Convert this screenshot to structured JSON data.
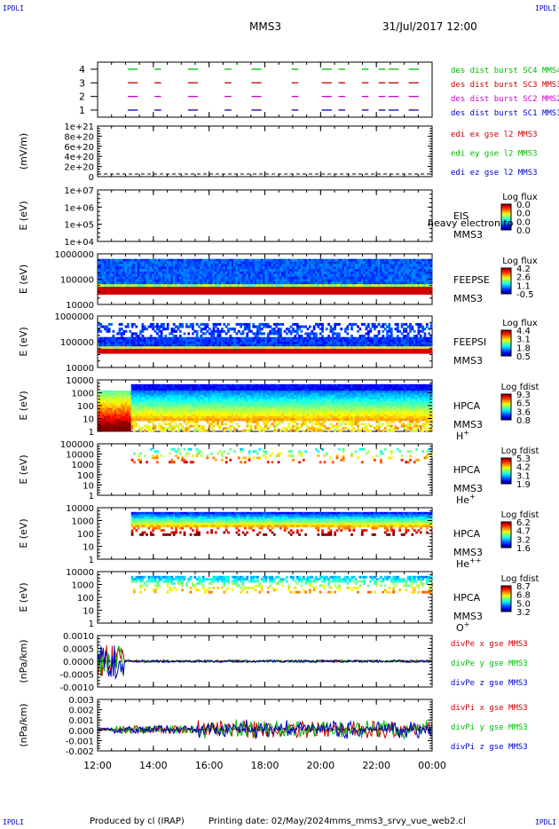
{
  "header": {
    "corner_label": "IPDLI",
    "title": "MMS3",
    "datetime": "31/Jul/2017 12:00"
  },
  "footer": {
    "produced_by": "Produced by cl (IRAP)",
    "printing_date": "Printing date: 02/May/2024",
    "filename": "mms_mms3_srvy_vue_web2.cl"
  },
  "colors": {
    "blue": "#0000cc",
    "magenta": "#cc00cc",
    "red": "#cc0000",
    "green": "#00bb00"
  },
  "chart_data": [
    {
      "type": "line",
      "title": "",
      "ylabel": "",
      "ylim": [
        0.5,
        4.5
      ],
      "yticks": [
        "1",
        "2",
        "3",
        "4"
      ],
      "series": [
        {
          "name": "des dist burst SC1 MMS1",
          "color": "#0000cc",
          "level": 1
        },
        {
          "name": "des dist burst SC2 MMS2",
          "color": "#cc00cc",
          "level": 2
        },
        {
          "name": "des dist burst SC3 MMS3",
          "color": "#cc0000",
          "level": 3
        },
        {
          "name": "des dist burst SC4 MMS4",
          "color": "#00bb00",
          "level": 4
        }
      ]
    },
    {
      "type": "line",
      "ylabel": "(mV/m)",
      "ylim": [
        0,
        1e+21
      ],
      "yticks": [
        "0",
        "2e+20",
        "4e+20",
        "6e+20",
        "8e+20",
        "1e+21"
      ],
      "series": [
        {
          "name": "edi ex gse l2 MMS3",
          "color": "#cc0000"
        },
        {
          "name": "edi ey gse l2 MMS3",
          "color": "#00bb00"
        },
        {
          "name": "edi ez gse l2 MMS3",
          "color": "#0000cc"
        }
      ]
    },
    {
      "type": "heatmap",
      "ylabel": "E (eV)",
      "yticks": [
        "1e+04",
        "1e+05",
        "1e+06",
        "1e+07"
      ],
      "instrument": "EIS",
      "spacecraft": "MMS3",
      "overlay_text": "heavy electron to",
      "colorbar_title": "Log flux",
      "colorbar_ticks": [
        "0.0",
        "0.0",
        "0.0",
        "0.0"
      ]
    },
    {
      "type": "heatmap",
      "ylabel": "E (eV)",
      "yticks": [
        "10000",
        "100000",
        "1000000"
      ],
      "instrument": "FEEPSE",
      "spacecraft": "MMS3",
      "colorbar_title": "Log flux",
      "colorbar_ticks": [
        "4.2",
        "2.6",
        "1.1",
        "-0.5"
      ]
    },
    {
      "type": "heatmap",
      "ylabel": "E (eV)",
      "yticks": [
        "10000",
        "100000",
        "1000000"
      ],
      "instrument": "FEEPSI",
      "spacecraft": "MMS3",
      "colorbar_title": "Log flux",
      "colorbar_ticks": [
        "4.4",
        "3.1",
        "1.8",
        "0.5"
      ]
    },
    {
      "type": "heatmap",
      "ylabel": "E (eV)",
      "yticks": [
        "1",
        "10",
        "100",
        "1000",
        "10000"
      ],
      "instrument": "HPCA",
      "spacecraft": "MMS3",
      "species": "H",
      "species_sup": "+",
      "colorbar_title": "Log fdist",
      "colorbar_ticks": [
        "9.3",
        "6.5",
        "3.6",
        "0.8"
      ]
    },
    {
      "type": "heatmap",
      "ylabel": "E (eV)",
      "yticks": [
        "1",
        "10",
        "100",
        "1000",
        "10000",
        "100000"
      ],
      "instrument": "HPCA",
      "spacecraft": "MMS3",
      "species": "He",
      "species_sup": "+",
      "colorbar_title": "Log fdist",
      "colorbar_ticks": [
        "5.3",
        "4.2",
        "3.1",
        "1.9"
      ]
    },
    {
      "type": "heatmap",
      "ylabel": "E (eV)",
      "yticks": [
        "1",
        "10",
        "100",
        "1000",
        "10000"
      ],
      "instrument": "HPCA",
      "spacecraft": "MMS3",
      "species": "He",
      "species_sup": "++",
      "colorbar_title": "Log fdist",
      "colorbar_ticks": [
        "6.2",
        "4.7",
        "3.2",
        "1.6"
      ]
    },
    {
      "type": "heatmap",
      "ylabel": "E (eV)",
      "yticks": [
        "1",
        "10",
        "100",
        "1000",
        "10000"
      ],
      "instrument": "HPCA",
      "spacecraft": "MMS3",
      "species": "O",
      "species_sup": "+",
      "colorbar_title": "Log fdist",
      "colorbar_ticks": [
        "8.7",
        "6.8",
        "5.0",
        "3.2"
      ]
    },
    {
      "type": "line",
      "ylabel": "(nPa/km)",
      "ylim": [
        -0.0012,
        0.0012
      ],
      "yticks": [
        "-0.0010",
        "-0.0005",
        "0.0000",
        "0.0005",
        "0.0010"
      ],
      "series": [
        {
          "name": "divPe x gse MMS3",
          "color": "#cc0000"
        },
        {
          "name": "divPe y gse MMS3",
          "color": "#00bb00"
        },
        {
          "name": "divPe z gse MMS3",
          "color": "#0000cc"
        }
      ]
    },
    {
      "type": "line",
      "ylabel": "(nPa/km)",
      "ylim": [
        -0.0025,
        0.0035
      ],
      "yticks": [
        "-0.002",
        "-0.001",
        "0.000",
        "0.001",
        "0.002",
        "0.003"
      ],
      "series": [
        {
          "name": "divPi x gse MMS3",
          "color": "#cc0000"
        },
        {
          "name": "divPi y gse MMS3",
          "color": "#00bb00"
        },
        {
          "name": "divPi z gse MMS3",
          "color": "#0000cc"
        }
      ]
    }
  ],
  "x_axis": {
    "range": [
      "12:00",
      "00:00"
    ],
    "ticks": [
      "12:00",
      "14:00",
      "16:00",
      "18:00",
      "20:00",
      "22:00",
      "00:00"
    ]
  }
}
